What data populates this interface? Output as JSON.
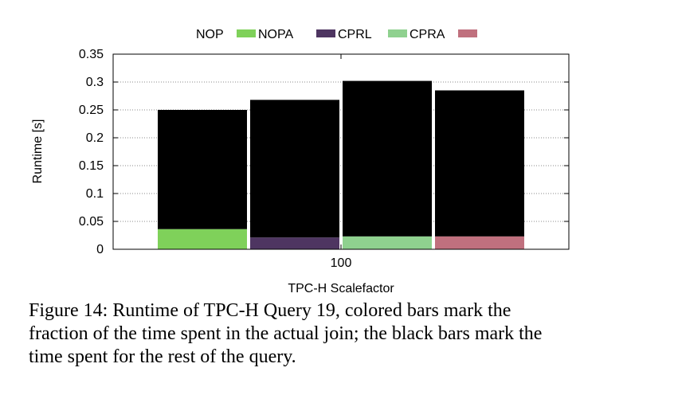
{
  "chart_data": {
    "type": "bar",
    "stacked": true,
    "categories": [
      "100"
    ],
    "xlabel": "TPC-H Scalefactor",
    "ylabel": "Runtime [s]",
    "ylim": [
      0,
      0.35
    ],
    "yticks": [
      "0",
      "0.05",
      "0.1",
      "0.15",
      "0.2",
      "0.25",
      "0.3",
      "0.35"
    ],
    "grid": true,
    "legend_position": "top",
    "legend": [
      "NOP",
      "NOPA",
      "CPRL",
      "CPRA"
    ],
    "rest_color": "#000000",
    "bars": [
      {
        "join": 0.036,
        "total": 0.25,
        "color": "#7fd15a"
      },
      {
        "join": 0.021,
        "total": 0.268,
        "color": "#4e3561"
      },
      {
        "join": 0.023,
        "total": 0.302,
        "color": "#8fd18f"
      },
      {
        "join": 0.023,
        "total": 0.285,
        "color": "#c0707e"
      }
    ]
  },
  "caption": "Figure 14:  Runtime of TPC-H Query 19, colored bars mark the\nfraction of the time spent in the actual join; the black bars mark the\ntime spent for the rest of the query."
}
